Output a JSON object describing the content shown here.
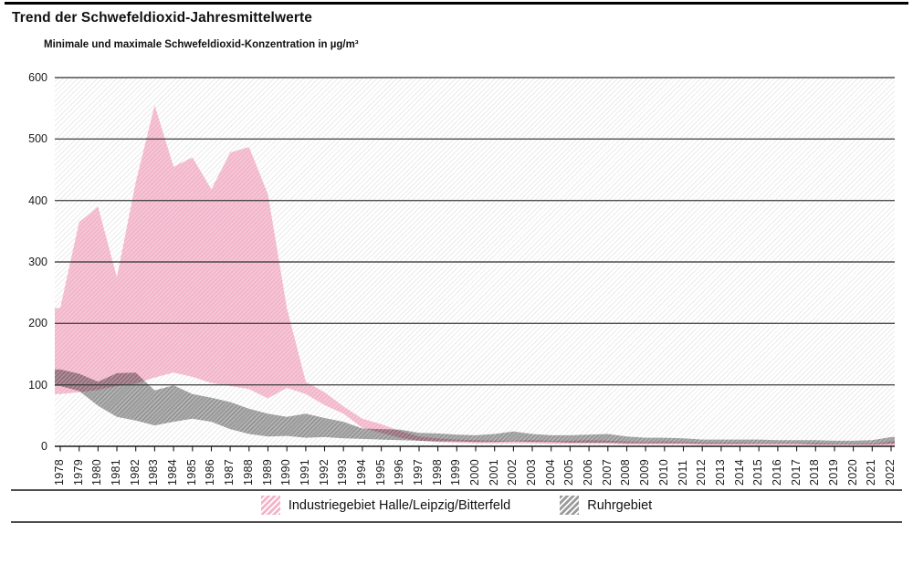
{
  "page": {
    "title": "Trend der Schwefeldioxid-Jahresmittelwerte",
    "subtitle": "Minimale und maximale Schwefeldioxid-Konzentration in µg/m³"
  },
  "chart_data": {
    "type": "area",
    "subtype": "min-max-band",
    "title": "Trend der Schwefeldioxid-Jahresmittelwerte",
    "subtitle": "Minimale und maximale Schwefeldioxid-Konzentration in µg/m³",
    "unit": "µg/m³",
    "ylim": [
      0,
      600
    ],
    "yticks": [
      0,
      100,
      200,
      300,
      400,
      500,
      600
    ],
    "grid": "horizontal",
    "background_hatch": true,
    "legend_position": "bottom-center",
    "x": [
      1978,
      1979,
      1980,
      1981,
      1982,
      1983,
      1984,
      1985,
      1986,
      1987,
      1988,
      1989,
      1990,
      1991,
      1992,
      1993,
      1994,
      1995,
      1996,
      1997,
      1998,
      1999,
      2000,
      2001,
      2002,
      2003,
      2004,
      2005,
      2006,
      2007,
      2008,
      2009,
      2010,
      2011,
      2012,
      2013,
      2014,
      2015,
      2016,
      2017,
      2018,
      2019,
      2020,
      2021,
      2022
    ],
    "series": [
      {
        "name": "Industriegebiet Halle/Leipzig/Bitterfeld",
        "color": "#f2b4ca",
        "max": [
          225,
          365,
          390,
          275,
          430,
          555,
          455,
          470,
          418,
          478,
          487,
          410,
          225,
          105,
          88,
          65,
          45,
          36,
          25,
          16,
          13,
          11,
          10,
          9,
          9,
          10,
          9,
          9,
          10,
          9,
          8,
          7,
          8,
          7,
          6,
          6,
          6,
          5,
          5,
          5,
          5,
          4,
          4,
          4,
          8
        ],
        "min": [
          85,
          88,
          92,
          98,
          102,
          112,
          120,
          113,
          103,
          98,
          93,
          78,
          95,
          85,
          67,
          53,
          30,
          22,
          14,
          9,
          7,
          6,
          5,
          5,
          5,
          5,
          4,
          4,
          4,
          4,
          3,
          3,
          3,
          3,
          2,
          2,
          2,
          2,
          2,
          2,
          2,
          2,
          2,
          1,
          1
        ]
      },
      {
        "name": "Ruhrgebiet",
        "color": "#9b9b9b",
        "max": [
          125,
          118,
          105,
          119,
          120,
          91,
          99,
          85,
          79,
          72,
          61,
          53,
          48,
          53,
          46,
          40,
          29,
          28,
          27,
          22,
          21,
          19,
          18,
          20,
          24,
          20,
          18,
          18,
          19,
          20,
          16,
          14,
          14,
          13,
          11,
          11,
          11,
          11,
          10,
          10,
          10,
          9,
          9,
          10,
          15
        ],
        "min": [
          98,
          90,
          66,
          48,
          42,
          34,
          40,
          45,
          40,
          28,
          20,
          16,
          17,
          14,
          15,
          13,
          12,
          11,
          10,
          9,
          8,
          8,
          7,
          7,
          8,
          7,
          7,
          6,
          6,
          6,
          5,
          5,
          5,
          5,
          4,
          4,
          4,
          4,
          4,
          4,
          3,
          3,
          3,
          3,
          4
        ]
      }
    ],
    "axis_colors": {
      "gridline": "#3c3c3c",
      "axis_line": "#1a1a1a",
      "rule": "#4d4d4d"
    }
  }
}
